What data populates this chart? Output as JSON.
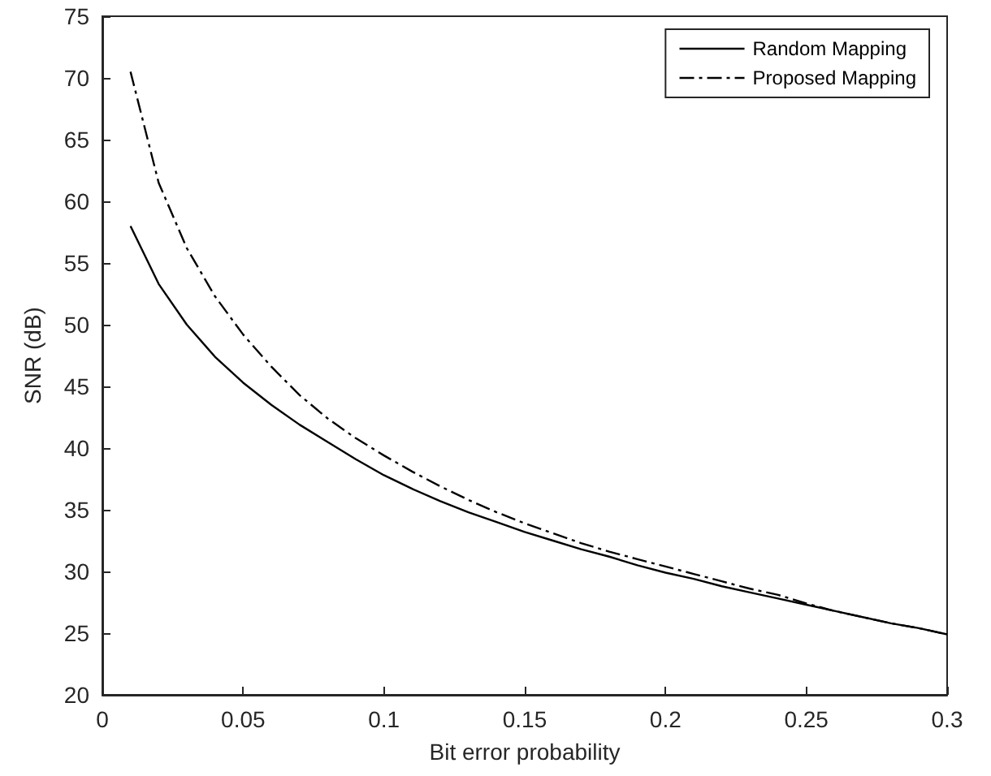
{
  "chart_data": {
    "type": "line",
    "xlabel": "Bit error probability",
    "ylabel": "SNR (dB)",
    "x": [
      0.01,
      0.02,
      0.03,
      0.04,
      0.05,
      0.06,
      0.07,
      0.08,
      0.09,
      0.1,
      0.11,
      0.12,
      0.13,
      0.14,
      0.15,
      0.16,
      0.17,
      0.18,
      0.19,
      0.2,
      0.21,
      0.22,
      0.23,
      0.24,
      0.25,
      0.26,
      0.27,
      0.28,
      0.29,
      0.3
    ],
    "series": [
      {
        "name": "Random Mapping",
        "color": "#000000",
        "line_style": "solid",
        "values": [
          58,
          53.3,
          50,
          47.4,
          45.3,
          43.5,
          41.9,
          40.5,
          39.1,
          37.8,
          36.7,
          35.7,
          34.8,
          34,
          33.2,
          32.5,
          31.8,
          31.2,
          30.5,
          29.9,
          29.4,
          28.8,
          28.3,
          27.8,
          27.3,
          26.8,
          26.3,
          25.8,
          25.4,
          24.9
        ]
      },
      {
        "name": "Proposed Mapping",
        "color": "#000000",
        "line_style": "dashed",
        "values": [
          70.5,
          61.5,
          56.2,
          52.3,
          49.2,
          46.6,
          44.3,
          42.4,
          40.8,
          39.4,
          38.1,
          36.9,
          35.8,
          34.8,
          33.9,
          33.1,
          32.3,
          31.6,
          31,
          30.4,
          29.8,
          29.2,
          28.6,
          28.1,
          27.4,
          26.8,
          26.3,
          25.8,
          25.4,
          24.9
        ]
      }
    ],
    "xlim": [
      0,
      0.3
    ],
    "xticks": [
      0,
      0.05,
      0.1,
      0.15,
      0.2,
      0.25,
      0.3
    ],
    "ylim": [
      20,
      75
    ],
    "yticks": [
      20,
      25,
      30,
      35,
      40,
      45,
      50,
      55,
      60,
      65,
      70,
      75
    ],
    "grid": false,
    "legend": "top right",
    "marker": "none"
  }
}
